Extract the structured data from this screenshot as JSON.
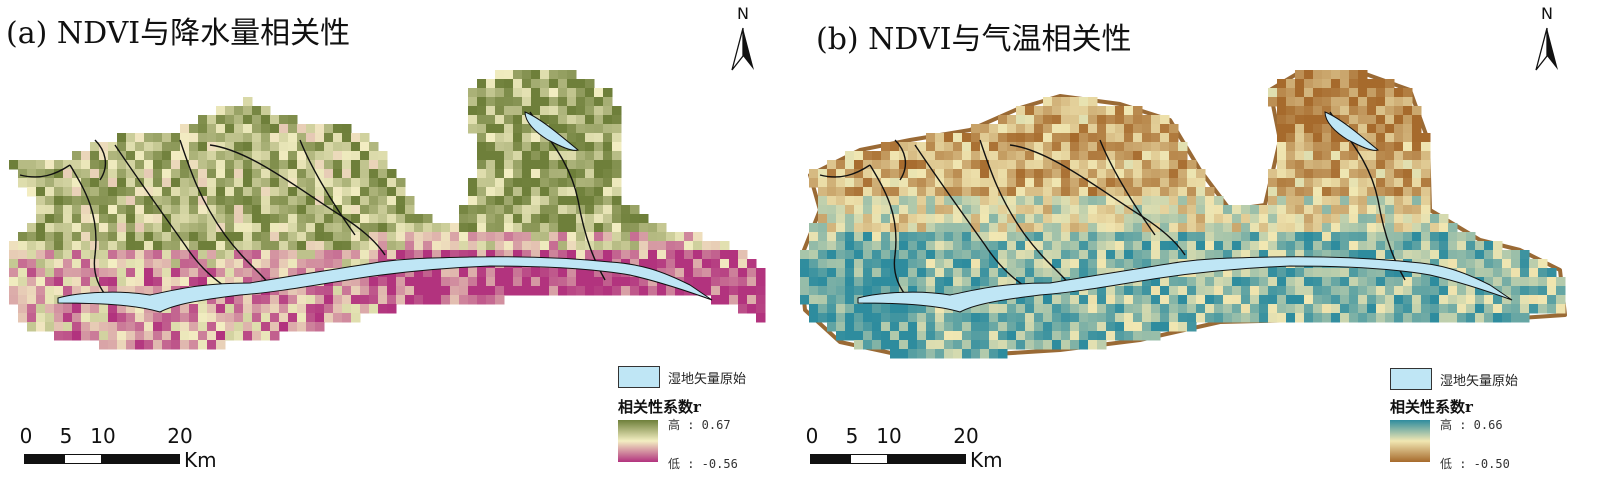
{
  "panels": [
    {
      "id": "a",
      "title": "(a) NDVI与降水量相关性",
      "north_label": "N",
      "legend": {
        "wetland_label": "湿地矢量原始",
        "ramp_title": "相关性系数r",
        "high_label": "高 : 0.67",
        "low_label": "低 : -0.56",
        "colors": {
          "high": "#6e7f3a",
          "mid": "#f3eec2",
          "low": "#b2337e"
        }
      },
      "scale": {
        "ticks": [
          "0",
          "5",
          "10",
          "20"
        ],
        "unit": "Km"
      }
    },
    {
      "id": "b",
      "title": "(b) NDVI与气温相关性",
      "north_label": "N",
      "legend": {
        "wetland_label": "湿地矢量原始",
        "ramp_title": "相关性系数r",
        "high_label": "高 : 0.66",
        "low_label": "低 : -0.50",
        "colors": {
          "high": "#2e8c9e",
          "mid": "#f1e7b2",
          "low": "#a66a2c"
        }
      },
      "scale": {
        "ticks": [
          "0",
          "5",
          "10",
          "20"
        ],
        "unit": "Km"
      }
    }
  ],
  "colors": {
    "wetland_fill": "#bfe6f5",
    "river": "#111111"
  }
}
